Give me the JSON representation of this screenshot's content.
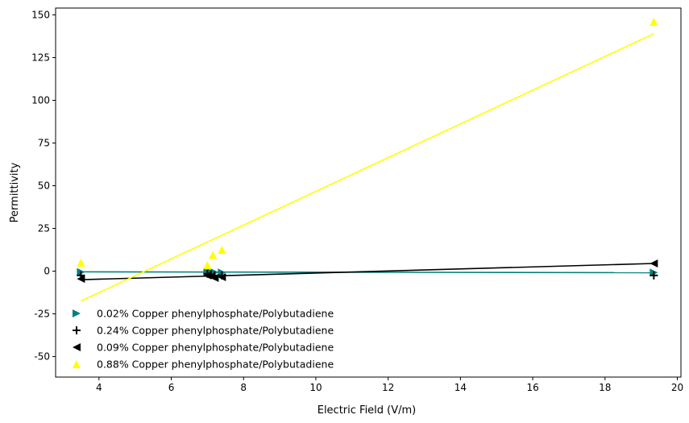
{
  "chart_data": {
    "type": "scatter",
    "title": "",
    "xlabel": "Electric Field (V/m)",
    "ylabel": "Permittivity",
    "xlim": [
      2.8,
      20.1
    ],
    "ylim": [
      -62,
      154
    ],
    "xticks": [
      4,
      6,
      8,
      10,
      12,
      14,
      16,
      18,
      20
    ],
    "yticks": [
      -50,
      -25,
      0,
      25,
      50,
      75,
      100,
      125,
      150
    ],
    "grid": false,
    "legend_position": "lower-left",
    "series": [
      {
        "name": "0.02% Copper phenylphosphate/Polybutadiene",
        "color": "#008080",
        "marker": "triangle-right",
        "x": [
          3.5,
          7.0,
          7.1,
          7.2,
          7.4,
          19.35
        ],
        "y": [
          -0.5,
          -0.5,
          -0.6,
          -0.7,
          -0.8,
          -0.8
        ],
        "fit": {
          "x": [
            3.5,
            19.35
          ],
          "y": [
            -0.4,
            -0.9
          ]
        }
      },
      {
        "name": "0.24% Copper phenylphosphate/Polybutadiene",
        "color": "#000000",
        "marker": "plus",
        "x": [
          3.5,
          7.0,
          7.1,
          7.2,
          7.4,
          19.35
        ],
        "y": [
          -2.5,
          -1.5,
          -2.0,
          -2.5,
          -2.5,
          -2.5
        ],
        "fit": null
      },
      {
        "name": "0.09% Copper phenylphosphate/Polybutadiene",
        "color": "#000000",
        "marker": "triangle-left",
        "x": [
          3.5,
          7.0,
          7.1,
          7.2,
          7.4,
          19.35
        ],
        "y": [
          -4.5,
          -2.5,
          -3.0,
          -4.0,
          -3.5,
          4.5
        ],
        "fit": {
          "x": [
            3.5,
            19.35
          ],
          "y": [
            -5.0,
            4.5
          ]
        }
      },
      {
        "name": "0.88% Copper phenylphosphate/Polybutadiene",
        "color": "#ffff00",
        "marker": "triangle-up",
        "x": [
          3.5,
          7.0,
          7.15,
          7.4,
          19.35
        ],
        "y": [
          5.0,
          3.5,
          9.5,
          12.5,
          146.0
        ],
        "fit": {
          "x": [
            3.5,
            19.35
          ],
          "y": [
            -17.5,
            139.0
          ]
        }
      }
    ]
  }
}
